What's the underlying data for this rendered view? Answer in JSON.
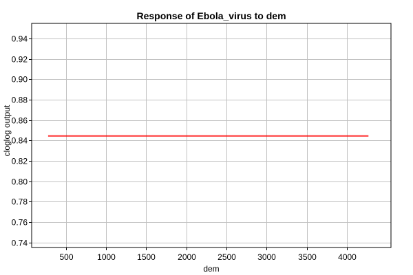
{
  "chart_data": {
    "type": "line",
    "title": "Response of Ebola_virus to dem",
    "xlabel": "dem",
    "ylabel": "cloglog output",
    "xlim": [
      75,
      4550
    ],
    "ylim": [
      0.735,
      0.955
    ],
    "xticks": [
      500,
      1000,
      1500,
      2000,
      2500,
      3000,
      3500,
      4000
    ],
    "yticks": [
      0.74,
      0.76,
      0.78,
      0.8,
      0.82,
      0.84,
      0.86,
      0.88,
      0.9,
      0.92,
      0.94
    ],
    "xtick_labels": [
      "500",
      "1000",
      "1500",
      "2000",
      "2500",
      "3000",
      "3500",
      "4000"
    ],
    "ytick_labels": [
      "0.74",
      "0.76",
      "0.78",
      "0.80",
      "0.82",
      "0.84",
      "0.86",
      "0.88",
      "0.90",
      "0.92",
      "0.94"
    ],
    "grid": true,
    "series": [
      {
        "color": "#ff0000",
        "x": [
          280,
          4270
        ],
        "y": [
          0.8445,
          0.8445
        ]
      }
    ]
  }
}
